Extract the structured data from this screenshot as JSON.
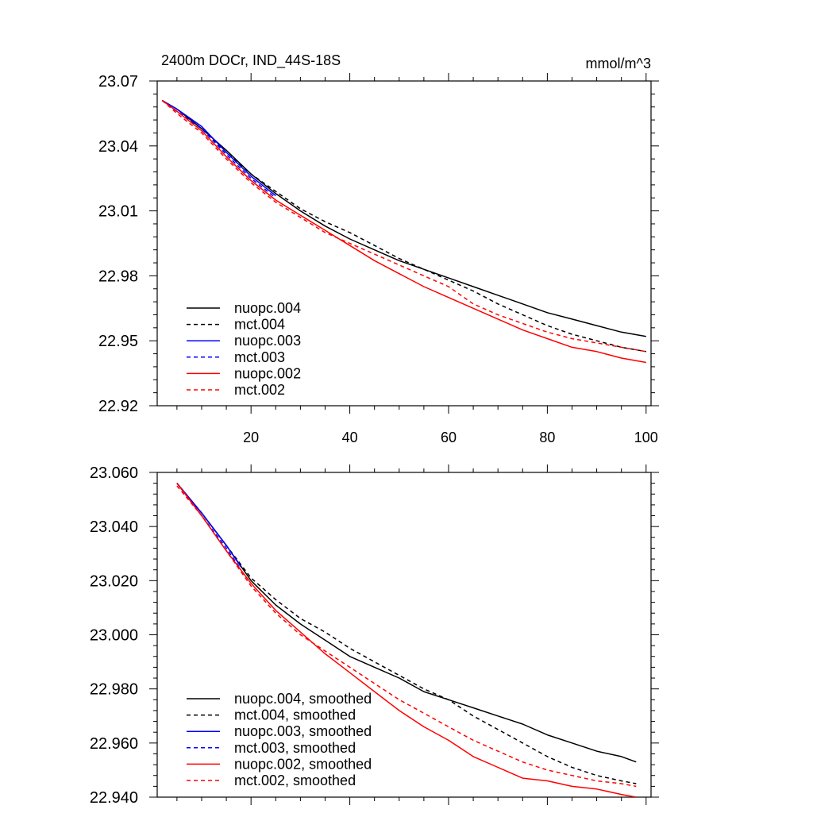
{
  "chart_data": [
    {
      "type": "line",
      "title": "2400m DOCr, IND_44S-18S",
      "units": "mmol/m^3",
      "xlim": [
        1,
        101
      ],
      "ylim": [
        22.92,
        23.07
      ],
      "xticks": [
        20,
        40,
        60,
        80,
        100
      ],
      "xtick_labels": [
        "20",
        "40",
        "60",
        "80",
        "100"
      ],
      "yticks": [
        22.92,
        22.95,
        22.98,
        23.01,
        23.04,
        23.07
      ],
      "ytick_labels": [
        "22.92",
        "22.95",
        "22.98",
        "23.01",
        "23.04",
        "23.07"
      ],
      "legend_position": "bottom-left",
      "series": [
        {
          "name": "nuopc.004",
          "color": "#000000",
          "dash": "solid",
          "x": [
            2,
            5,
            10,
            15,
            20,
            25,
            30,
            35,
            40,
            45,
            50,
            55,
            60,
            65,
            70,
            75,
            80,
            85,
            90,
            95,
            100
          ],
          "values": [
            23.061,
            23.057,
            23.048,
            23.038,
            23.027,
            23.018,
            23.01,
            23.003,
            22.997,
            22.992,
            22.987,
            22.983,
            22.979,
            22.975,
            22.971,
            22.967,
            22.963,
            22.96,
            22.957,
            22.954,
            22.952
          ]
        },
        {
          "name": "mct.004",
          "color": "#000000",
          "dash": "dashed",
          "x": [
            2,
            5,
            10,
            15,
            20,
            25,
            30,
            35,
            40,
            45,
            50,
            55,
            60,
            65,
            70,
            75,
            80,
            85,
            90,
            95,
            100
          ],
          "values": [
            23.061,
            23.056,
            23.048,
            23.037,
            23.027,
            23.019,
            23.011,
            23.005,
            23.0,
            22.994,
            22.988,
            22.983,
            22.978,
            22.973,
            22.967,
            22.962,
            22.957,
            22.953,
            22.95,
            22.947,
            22.945
          ]
        },
        {
          "name": "nuopc.003",
          "color": "#0000ff",
          "dash": "solid",
          "x": [
            2,
            5,
            10,
            15,
            20,
            25
          ],
          "values": [
            23.061,
            23.057,
            23.049,
            23.037,
            23.026,
            23.017
          ]
        },
        {
          "name": "mct.003",
          "color": "#0000ff",
          "dash": "dashed",
          "x": [
            2,
            5,
            10,
            15,
            20,
            25
          ],
          "values": [
            23.061,
            23.056,
            23.048,
            23.036,
            23.025,
            23.016
          ]
        },
        {
          "name": "nuopc.002",
          "color": "#ff0000",
          "dash": "solid",
          "x": [
            2,
            5,
            10,
            15,
            20,
            25,
            30,
            35,
            40,
            45,
            50,
            55,
            60,
            65,
            70,
            75,
            80,
            85,
            90,
            95,
            100
          ],
          "values": [
            23.061,
            23.056,
            23.047,
            23.035,
            23.024,
            23.015,
            23.008,
            23.001,
            22.994,
            22.987,
            22.981,
            22.975,
            22.97,
            22.965,
            22.96,
            22.955,
            22.951,
            22.947,
            22.945,
            22.942,
            22.94
          ]
        },
        {
          "name": "mct.002",
          "color": "#ff0000",
          "dash": "dashed",
          "x": [
            2,
            5,
            10,
            15,
            20,
            25,
            30,
            35,
            40,
            45,
            50,
            55,
            60,
            65,
            70,
            75,
            80,
            85,
            90,
            95,
            100
          ],
          "values": [
            23.061,
            23.055,
            23.046,
            23.034,
            23.023,
            23.014,
            23.007,
            23.0,
            22.995,
            22.99,
            22.985,
            22.98,
            22.975,
            22.967,
            22.962,
            22.958,
            22.954,
            22.951,
            22.949,
            22.947,
            22.945
          ]
        }
      ]
    },
    {
      "type": "line",
      "title": "",
      "xlim": [
        1,
        101
      ],
      "ylim": [
        22.94,
        23.06
      ],
      "xticks": [
        20,
        40,
        60,
        80,
        100
      ],
      "xtick_labels": [],
      "yticks": [
        22.94,
        22.96,
        22.98,
        23.0,
        23.02,
        23.04,
        23.06
      ],
      "ytick_labels": [
        "22.940",
        "22.960",
        "22.980",
        "23.000",
        "23.020",
        "23.040",
        "23.060"
      ],
      "legend_position": "bottom-left",
      "series": [
        {
          "name": "nuopc.004, smoothed",
          "color": "#000000",
          "dash": "solid",
          "x": [
            5,
            10,
            15,
            20,
            25,
            30,
            35,
            40,
            45,
            50,
            55,
            60,
            65,
            70,
            75,
            80,
            85,
            90,
            95,
            98
          ],
          "values": [
            23.056,
            23.045,
            23.033,
            23.02,
            23.011,
            23.004,
            22.998,
            22.992,
            22.988,
            22.984,
            22.979,
            22.976,
            22.973,
            22.97,
            22.967,
            22.963,
            22.96,
            22.957,
            22.955,
            22.953
          ]
        },
        {
          "name": "mct.004, smoothed",
          "color": "#000000",
          "dash": "dashed",
          "x": [
            5,
            10,
            15,
            20,
            25,
            30,
            35,
            40,
            45,
            50,
            55,
            60,
            65,
            70,
            75,
            80,
            85,
            90,
            95,
            98
          ],
          "values": [
            23.056,
            23.045,
            23.033,
            23.021,
            23.013,
            23.006,
            23.001,
            22.995,
            22.99,
            22.985,
            22.98,
            22.976,
            22.97,
            22.965,
            22.96,
            22.955,
            22.951,
            22.948,
            22.946,
            22.945
          ]
        },
        {
          "name": "nuopc.003, smoothed",
          "color": "#0000ff",
          "dash": "solid",
          "x": [
            5,
            10,
            15,
            18
          ],
          "values": [
            23.056,
            23.045,
            23.033,
            23.025
          ]
        },
        {
          "name": "mct.003, smoothed",
          "color": "#0000ff",
          "dash": "dashed",
          "x": [
            5,
            10,
            15,
            18
          ],
          "values": [
            23.056,
            23.044,
            23.032,
            23.024
          ]
        },
        {
          "name": "nuopc.002, smoothed",
          "color": "#ff0000",
          "dash": "solid",
          "x": [
            5,
            10,
            15,
            20,
            25,
            30,
            35,
            40,
            45,
            50,
            55,
            60,
            65,
            70,
            75,
            80,
            85,
            90,
            95,
            98
          ],
          "values": [
            23.056,
            23.044,
            23.031,
            23.019,
            23.009,
            23.001,
            22.993,
            22.986,
            22.979,
            22.972,
            22.966,
            22.961,
            22.955,
            22.951,
            22.947,
            22.946,
            22.944,
            22.943,
            22.941,
            22.94
          ]
        },
        {
          "name": "mct.002, smoothed",
          "color": "#ff0000",
          "dash": "dashed",
          "x": [
            5,
            10,
            15,
            20,
            25,
            30,
            35,
            40,
            45,
            50,
            55,
            60,
            65,
            70,
            75,
            80,
            85,
            90,
            95,
            98
          ],
          "values": [
            23.055,
            23.044,
            23.031,
            23.018,
            23.008,
            23.0,
            22.994,
            22.988,
            22.982,
            22.976,
            22.971,
            22.966,
            22.961,
            22.957,
            22.953,
            22.95,
            22.948,
            22.946,
            22.945,
            22.944
          ]
        }
      ]
    }
  ]
}
